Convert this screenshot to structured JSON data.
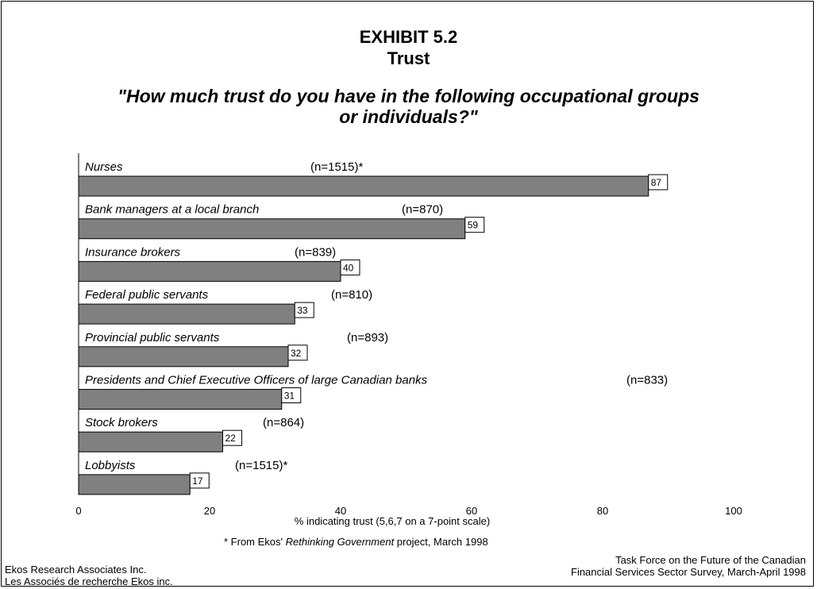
{
  "header": {
    "exhibit": "EXHIBIT 5.2",
    "title": "Trust",
    "question_line1": "\"How much trust do you have in the following occupational groups",
    "question_line2": "or individuals?\""
  },
  "chart_data": {
    "type": "bar",
    "orientation": "horizontal",
    "categories": [
      "Nurses",
      "Bank managers at a local branch",
      "Insurance brokers",
      "Federal public servants",
      "Provincial public servants",
      "Presidents and Chief Executive Officers of large Canadian banks",
      "Stock brokers",
      "Lobbyists"
    ],
    "sample_sizes": [
      "(n=1515)*",
      "(n=870)",
      "(n=839)",
      "(n=810)",
      "(n=893)",
      "(n=833)",
      "(n=864)",
      "(n=1515)*"
    ],
    "values": [
      87,
      59,
      40,
      33,
      32,
      31,
      22,
      17
    ],
    "xlabel": "% indicating trust (5,6,7 on a 7-point scale)",
    "xlim": [
      0,
      100
    ],
    "xticks": [
      0,
      20,
      40,
      60,
      80,
      100
    ],
    "bar_color": "#808080",
    "grid": false
  },
  "footnote": {
    "prefix": "*  From Ekos' ",
    "emphasis": "Rethinking Government",
    "suffix": " project, March 1998"
  },
  "footer": {
    "org_line1": "Ekos Research Associates Inc.",
    "org_line2": "Les Associés de recherche Ekos inc.",
    "source_line1": "Task Force on the Future of the Canadian",
    "source_line2": "Financial Services Sector Survey, March-April 1998"
  }
}
